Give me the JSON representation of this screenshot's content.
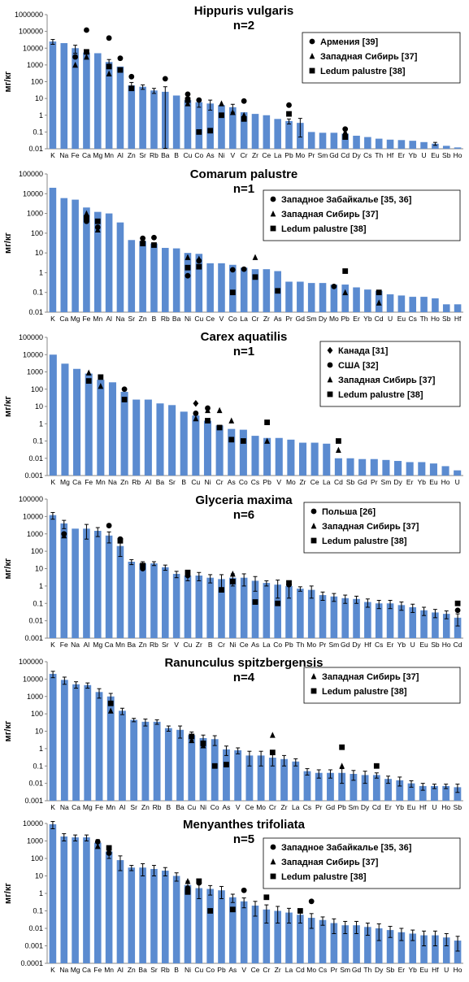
{
  "figure": {
    "ylabel": "мг/кг",
    "colors": {
      "bar": "#5b8bd0",
      "marker": "#000000",
      "axis": "#888888"
    }
  },
  "chart_data": [
    {
      "type": "bar",
      "title": "Hippuris vulgaris",
      "subtitle": "n=2",
      "ylabel": "мг/кг",
      "yscale": "log",
      "ylim": [
        0.01,
        1000000
      ],
      "yticks": [
        "1000000",
        "100000",
        "10000",
        "1000",
        "100",
        "10",
        "1",
        "0.1",
        "0.01"
      ],
      "categories": [
        "K",
        "Na",
        "Fe",
        "Ca",
        "Mg",
        "Mn",
        "Al",
        "Zn",
        "Sr",
        "Rb",
        "Ba",
        "B",
        "Cu",
        "Co",
        "As",
        "Ni",
        "V",
        "Cr",
        "Zr",
        "Ce",
        "La",
        "Pb",
        "Mo",
        "Pr",
        "Sm",
        "Gd",
        "Cd",
        "Dy",
        "Cs",
        "Th",
        "Hf",
        "Er",
        "Yb",
        "U",
        "Eu",
        "Sb",
        "Ho"
      ],
      "values": [
        25000,
        20000,
        10000,
        5500,
        5000,
        1500,
        800,
        60,
        50,
        30,
        25,
        15,
        8,
        6,
        5,
        4,
        3,
        1.5,
        1.2,
        1,
        0.6,
        0.45,
        0.35,
        0.1,
        0.09,
        0.09,
        0.08,
        0.06,
        0.05,
        0.04,
        0.035,
        0.033,
        0.03,
        0.025,
        0.02,
        0.015,
        0.012
      ],
      "errors": [
        8000,
        0,
        5000,
        0,
        0,
        600,
        0,
        30,
        15,
        10,
        25,
        0,
        4,
        3,
        3,
        0,
        1.5,
        0,
        0,
        0,
        0,
        0.15,
        0.3,
        0,
        0,
        0,
        0.04,
        0,
        0,
        0,
        0,
        0,
        0,
        0,
        0.004,
        0,
        0
      ],
      "legend": [
        {
          "marker": "circle",
          "label": "Армения [39]"
        },
        {
          "marker": "triangle",
          "label": "Западная Сибирь [37]"
        },
        {
          "marker": "square",
          "label": "Ledum palustre [38]"
        }
      ],
      "points": [
        {
          "cat": "Ca",
          "circle": 120000,
          "triangle": 3000,
          "square": 6000
        },
        {
          "cat": "Fe",
          "circle": 3000,
          "triangle": 1000
        },
        {
          "cat": "Mn",
          "circle": 40000,
          "square": 800,
          "triangle": 300
        },
        {
          "cat": "Al",
          "circle": 2500,
          "square": 500
        },
        {
          "cat": "Zn",
          "circle": 200,
          "square": 40
        },
        {
          "cat": "Ba",
          "circle": 150
        },
        {
          "cat": "Cu",
          "circle": 18,
          "square": 8,
          "triangle": 5
        },
        {
          "cat": "Co",
          "circle": 8,
          "square": 0.1
        },
        {
          "cat": "As",
          "square": 0.12
        },
        {
          "cat": "Ni",
          "triangle": 5,
          "square": 1
        },
        {
          "cat": "V",
          "triangle": 1.5
        },
        {
          "cat": "Cr",
          "circle": 7,
          "square": 0.6,
          "triangle": 1
        },
        {
          "cat": "Pb",
          "circle": 4,
          "square": 1.2
        },
        {
          "cat": "Cd",
          "circle": 0.15,
          "triangle": 0.1,
          "square": 0.05
        }
      ]
    },
    {
      "type": "bar",
      "title": "Comarum palustre",
      "subtitle": "n=1",
      "ylabel": "мг/кг",
      "yscale": "log",
      "ylim": [
        0.01,
        100000
      ],
      "yticks": [
        "100000",
        "10000",
        "1000",
        "100",
        "10",
        "1",
        "0.1",
        "0.01"
      ],
      "categories": [
        "K",
        "Ca",
        "Mg",
        "Fe",
        "Mn",
        "Al",
        "Na",
        "Sr",
        "Zn",
        "B",
        "Rb",
        "Ba",
        "Ni",
        "Cu",
        "Ce",
        "V",
        "Co",
        "La",
        "Cr",
        "Zr",
        "As",
        "Pr",
        "Gd",
        "Sm",
        "Dy",
        "Mo",
        "Pb",
        "Er",
        "Yb",
        "Cd",
        "U",
        "Eu",
        "Cs",
        "Th",
        "Ho",
        "Sb",
        "Hf"
      ],
      "values": [
        20000,
        6000,
        5000,
        2000,
        1200,
        1000,
        350,
        45,
        40,
        30,
        18,
        17,
        10,
        9,
        3,
        3,
        2.5,
        1.8,
        1.5,
        1.5,
        1.2,
        0.35,
        0.35,
        0.3,
        0.3,
        0.25,
        0.25,
        0.18,
        0.14,
        0.12,
        0.08,
        0.07,
        0.06,
        0.06,
        0.05,
        0.025,
        0.025
      ],
      "errors": [],
      "legend": [
        {
          "marker": "circle",
          "label": "Западное Забайкалье [35, 36]"
        },
        {
          "marker": "triangle",
          "label": "Западная Сибирь [37]"
        },
        {
          "marker": "square",
          "label": "Ledum palustre [38]"
        }
      ],
      "points": [
        {
          "cat": "Fe",
          "circle": 400,
          "triangle": 1000,
          "square": 600
        },
        {
          "cat": "Mn",
          "circle": 200,
          "triangle": 150,
          "square": 400
        },
        {
          "cat": "Zn",
          "circle": 55,
          "square": 30
        },
        {
          "cat": "B",
          "circle": 60,
          "square": 25
        },
        {
          "cat": "Ni",
          "circle": 0.7,
          "triangle": 6,
          "square": 1.8
        },
        {
          "cat": "Cu",
          "circle": 4,
          "triangle": 5,
          "square": 2
        },
        {
          "cat": "Co",
          "circle": 1.4,
          "square": 0.1
        },
        {
          "cat": "Cr",
          "triangle": 6,
          "square": 0.6
        },
        {
          "cat": "As",
          "square": 0.12
        },
        {
          "cat": "La",
          "circle": 1.5
        },
        {
          "cat": "Mo",
          "circle": 0.2
        },
        {
          "cat": "Pb",
          "square": 1.2,
          "triangle": 0.1
        },
        {
          "cat": "Cd",
          "square": 0.1,
          "triangle": 0.03
        }
      ]
    },
    {
      "type": "bar",
      "title": "Carex aquatilis",
      "subtitle": "n=1",
      "ylabel": "мг/кг",
      "yscale": "log",
      "ylim": [
        0.001,
        100000
      ],
      "yticks": [
        "100000",
        "10000",
        "1000",
        "100",
        "10",
        "1",
        "0.1",
        "0.01",
        "0.001"
      ],
      "categories": [
        "K",
        "Mg",
        "Ca",
        "Fe",
        "Mn",
        "Na",
        "Zn",
        "Rb",
        "Al",
        "Ba",
        "Sr",
        "B",
        "Cu",
        "Ni",
        "Cr",
        "As",
        "Co",
        "Cs",
        "Pb",
        "V",
        "Mo",
        "Zr",
        "Ce",
        "La",
        "Cd",
        "Sb",
        "Gd",
        "Pr",
        "Sm",
        "Dy",
        "Er",
        "Yb",
        "Eu",
        "Ho",
        "U"
      ],
      "values": [
        10000,
        3000,
        1500,
        800,
        350,
        250,
        70,
        25,
        25,
        15,
        12,
        5,
        3,
        1.5,
        0.8,
        0.5,
        0.45,
        0.2,
        0.15,
        0.15,
        0.12,
        0.08,
        0.08,
        0.07,
        0.01,
        0.01,
        0.009,
        0.009,
        0.008,
        0.007,
        0.006,
        0.006,
        0.005,
        0.0035,
        0.002
      ],
      "errors": [],
      "legend": [
        {
          "marker": "diamond",
          "label": "Канада [31]"
        },
        {
          "marker": "circle",
          "label": "США [32]"
        },
        {
          "marker": "triangle",
          "label": "Западная Сибирь [37]"
        },
        {
          "marker": "square",
          "label": "Ledum palustre [38]"
        }
      ],
      "points": [
        {
          "cat": "Fe",
          "triangle": 900,
          "square": 300
        },
        {
          "cat": "Mn",
          "triangle": 150,
          "square": 500
        },
        {
          "cat": "Zn",
          "circle": 100,
          "square": 25
        },
        {
          "cat": "Cu",
          "diamond": 15,
          "circle": 4,
          "triangle": 2
        },
        {
          "cat": "Ni",
          "circle": 8,
          "triangle": 6,
          "square": 1.5
        },
        {
          "cat": "Cr",
          "triangle": 6,
          "square": 0.6
        },
        {
          "cat": "As",
          "triangle": 1.5,
          "square": 0.12
        },
        {
          "cat": "Co",
          "square": 0.1
        },
        {
          "cat": "Pb",
          "square": 1.2,
          "triangle": 0.1
        },
        {
          "cat": "Cd",
          "square": 0.1,
          "triangle": 0.03
        }
      ]
    },
    {
      "type": "bar",
      "title": "Glyceria maxima",
      "subtitle": "n=6",
      "ylabel": "мг/кг",
      "yscale": "log",
      "ylim": [
        0.001,
        100000
      ],
      "yticks": [
        "100000",
        "10000",
        "1000",
        "100",
        "10",
        "1",
        "0.1",
        "0.01",
        "0.001"
      ],
      "categories": [
        "K",
        "Fe",
        "Na",
        "Al",
        "Mg",
        "Ca",
        "Mn",
        "Ba",
        "Zn",
        "Rb",
        "Sr",
        "V",
        "Cu",
        "Zr",
        "B",
        "Cr",
        "Ni",
        "Ce",
        "As",
        "La",
        "Co",
        "Pb",
        "Th",
        "Mo",
        "Pr",
        "Sm",
        "Gd",
        "Dy",
        "Hf",
        "Cs",
        "Er",
        "Yb",
        "U",
        "Eu",
        "Sb",
        "Ho",
        "Cd"
      ],
      "values": [
        12000,
        4000,
        2000,
        2000,
        1500,
        800,
        200,
        25,
        20,
        20,
        12,
        5,
        4,
        4,
        3,
        2.5,
        3,
        3,
        2,
        1.5,
        1.2,
        1,
        0.7,
        0.6,
        0.3,
        0.25,
        0.2,
        0.18,
        0.12,
        0.1,
        0.1,
        0.08,
        0.06,
        0.04,
        0.03,
        0.025,
        0.015
      ],
      "errors": [
        5000,
        2000,
        0,
        1500,
        800,
        500,
        150,
        8,
        5,
        5,
        4,
        2,
        2,
        2,
        1.5,
        2,
        2,
        2,
        1.5,
        0.5,
        1,
        0.8,
        0.2,
        0.4,
        0.15,
        0.12,
        0.1,
        0.08,
        0.06,
        0.05,
        0.05,
        0.04,
        0.03,
        0.02,
        0.015,
        0.012,
        0.01
      ],
      "legend": [
        {
          "marker": "circle",
          "label": "Польша [26]"
        },
        {
          "marker": "triangle",
          "label": "Западная Сибирь [37]"
        },
        {
          "marker": "square",
          "label": "Ledum palustre [38]"
        }
      ],
      "points": [
        {
          "cat": "Fe",
          "circle": 1000,
          "triangle": 800
        },
        {
          "cat": "Ca",
          "circle": 3000
        },
        {
          "cat": "Mn",
          "circle": 500,
          "square": 400
        },
        {
          "cat": "Zn",
          "square": 15,
          "circle": 10
        },
        {
          "cat": "Cu",
          "square": 6,
          "circle": 4
        },
        {
          "cat": "Cr",
          "square": 0.6
        },
        {
          "cat": "Ni",
          "triangle": 5,
          "square": 1.8
        },
        {
          "cat": "As",
          "square": 0.12
        },
        {
          "cat": "Co",
          "square": 0.1
        },
        {
          "cat": "Pb",
          "square": 1.5,
          "circle": 1.2
        },
        {
          "cat": "Cd",
          "square": 0.1,
          "circle": 0.04
        }
      ]
    },
    {
      "type": "bar",
      "title": "Ranunculus spitzbergensis",
      "subtitle": "n=4",
      "ylabel": "мг/кг",
      "yscale": "log",
      "ylim": [
        0.001,
        100000
      ],
      "yticks": [
        "100000",
        "10000",
        "1000",
        "100",
        "10",
        "1",
        "0.1",
        "0.01",
        "0.001"
      ],
      "categories": [
        "K",
        "Na",
        "Ca",
        "Mg",
        "Fe",
        "Mn",
        "Al",
        "Sr",
        "Zn",
        "Rb",
        "B",
        "Ba",
        "Cu",
        "Ni",
        "Co",
        "As",
        "V",
        "Ce",
        "Mo",
        "Cr",
        "Zr",
        "La",
        "Cs",
        "Pr",
        "Gd",
        "Pb",
        "Sm",
        "Dy",
        "Cd",
        "Er",
        "Yb",
        "Eu",
        "Hf",
        "U",
        "Ho",
        "Sb"
      ],
      "values": [
        20000,
        9000,
        5000,
        4500,
        1800,
        1000,
        150,
        45,
        35,
        35,
        15,
        12,
        6,
        4,
        3.5,
        0.9,
        0.8,
        0.4,
        0.4,
        0.3,
        0.25,
        0.18,
        0.05,
        0.04,
        0.04,
        0.04,
        0.035,
        0.03,
        0.03,
        0.018,
        0.015,
        0.01,
        0.007,
        0.007,
        0.007,
        0.006
      ],
      "errors": [
        8000,
        4000,
        2000,
        1500,
        1000,
        500,
        60,
        10,
        15,
        10,
        5,
        8,
        3,
        2,
        2,
        0.5,
        0.3,
        0.3,
        0.3,
        0.2,
        0.15,
        0.08,
        0.02,
        0.02,
        0.02,
        0.03,
        0.02,
        0.02,
        0.01,
        0.008,
        0.008,
        0.004,
        0.003,
        0.002,
        0.002,
        0.003
      ],
      "legend": [
        {
          "marker": "triangle",
          "label": "Западная Сибирь [37]"
        },
        {
          "marker": "square",
          "label": "Ledum palustre [38]"
        }
      ],
      "points": [
        {
          "cat": "Mn",
          "triangle": 150,
          "square": 400
        },
        {
          "cat": "Cu",
          "triangle": 3,
          "square": 5
        },
        {
          "cat": "Ni",
          "triangle": 1.5,
          "square": 2
        },
        {
          "cat": "Co",
          "square": 0.1
        },
        {
          "cat": "As",
          "square": 0.12
        },
        {
          "cat": "Cr",
          "triangle": 6,
          "square": 0.6
        },
        {
          "cat": "Pb",
          "square": 1.2,
          "triangle": 0.1
        },
        {
          "cat": "Cd",
          "square": 0.1
        }
      ]
    },
    {
      "type": "bar",
      "title": "Menyanthes trifoliata",
      "subtitle": "n=5",
      "ylabel": "мг/кг",
      "yscale": "log",
      "ylim": [
        0.0001,
        10000
      ],
      "yticks": [
        "10000",
        "1000",
        "100",
        "10",
        "1",
        "0.1",
        "0.01",
        "0.001",
        "0.0001"
      ],
      "categories": [
        "K",
        "Na",
        "Mg",
        "Ca",
        "Fe",
        "Mn",
        "Al",
        "Zn",
        "Ba",
        "Sr",
        "Rb",
        "B",
        "Ni",
        "Cu",
        "Co",
        "Pb",
        "As",
        "V",
        "Ce",
        "Cr",
        "Zr",
        "La",
        "Cd",
        "Mo",
        "Cs",
        "Pr",
        "Sm",
        "Gd",
        "Th",
        "Dy",
        "Sb",
        "Er",
        "Yb",
        "Eu",
        "Hf",
        "U",
        "Ho"
      ],
      "values": [
        9000,
        1800,
        1600,
        1600,
        800,
        250,
        80,
        30,
        30,
        25,
        20,
        10,
        3,
        2,
        1.8,
        1.5,
        0.6,
        0.35,
        0.2,
        0.12,
        0.1,
        0.08,
        0.06,
        0.04,
        0.03,
        0.02,
        0.015,
        0.015,
        0.012,
        0.01,
        0.008,
        0.006,
        0.005,
        0.004,
        0.004,
        0.003,
        0.002
      ],
      "errors": [
        4000,
        800,
        600,
        600,
        400,
        150,
        60,
        10,
        20,
        15,
        10,
        5,
        2,
        1.5,
        1,
        1,
        0.3,
        0.2,
        0.15,
        0.1,
        0.08,
        0.06,
        0.04,
        0.03,
        0.015,
        0.015,
        0.01,
        0.01,
        0.008,
        0.008,
        0.005,
        0.004,
        0.003,
        0.003,
        0.003,
        0.002,
        0.0015
      ],
      "legend": [
        {
          "marker": "circle",
          "label": "Западное Забайкалье [35, 36]"
        },
        {
          "marker": "triangle",
          "label": "Западная Сибирь [37]"
        },
        {
          "marker": "square",
          "label": "Ledum palustre [38]"
        }
      ],
      "points": [
        {
          "cat": "Fe",
          "circle": 900,
          "triangle": 500
        },
        {
          "cat": "Mn",
          "circle": 200,
          "square": 400,
          "triangle": 300
        },
        {
          "cat": "Ni",
          "circle": 2,
          "triangle": 5,
          "square": 1.2
        },
        {
          "cat": "Cu",
          "circle": 4,
          "square": 5
        },
        {
          "cat": "Co",
          "square": 0.1
        },
        {
          "cat": "As",
          "square": 0.12
        },
        {
          "cat": "V",
          "circle": 1.5
        },
        {
          "cat": "Cr",
          "triangle": 6,
          "square": 0.6
        },
        {
          "cat": "Cd",
          "square": 0.1
        },
        {
          "cat": "Mo",
          "circle": 0.35
        }
      ]
    }
  ]
}
